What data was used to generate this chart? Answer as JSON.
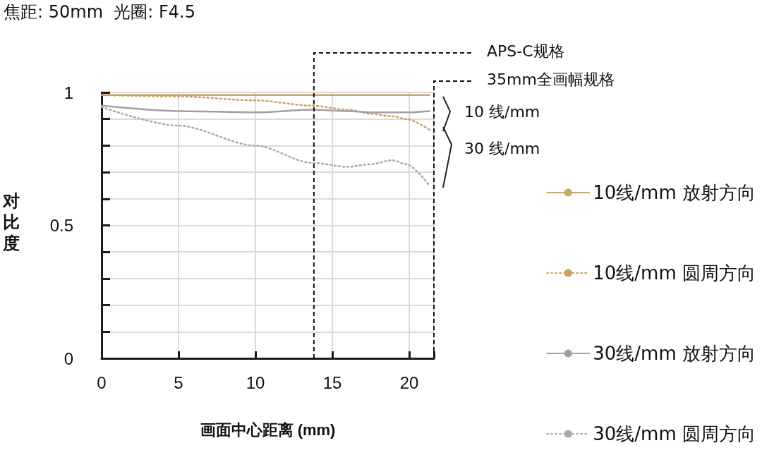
{
  "chart_data": {
    "type": "line",
    "title": "焦距: 50mm  光圈: F4.5",
    "xlabel": "画面中心距离 (mm)",
    "ylabel": "对比度",
    "x": [
      0,
      5,
      10,
      13.7,
      16,
      17.5,
      18.9,
      19.8,
      21.3
    ],
    "series": [
      {
        "name": "10线/mm 放射方向",
        "color": "#c9a46c",
        "line_style": "solid",
        "values": [
          0.99,
          0.99,
          0.99,
          0.99,
          0.99,
          0.99,
          0.99,
          0.99,
          0.99
        ]
      },
      {
        "name": "10线/mm 圆周方向",
        "color": "#c9a060",
        "line_style": "dotted",
        "values": [
          0.99,
          0.985,
          0.97,
          0.95,
          0.935,
          0.92,
          0.91,
          0.9,
          0.86
        ]
      },
      {
        "name": "30线/mm 放射方向",
        "color": "#a0a0a0",
        "line_style": "solid",
        "values": [
          0.95,
          0.93,
          0.925,
          0.935,
          0.93,
          0.925,
          0.925,
          0.925,
          0.93
        ]
      },
      {
        "name": "30线/mm 圆周方向",
        "color": "#a8a8a8",
        "line_style": "dotted",
        "values": [
          0.945,
          0.875,
          0.8,
          0.735,
          0.72,
          0.73,
          0.745,
          0.73,
          0.65
        ]
      }
    ],
    "xlim": [
      0,
      21.6
    ],
    "xticks": [
      0,
      5,
      10,
      15,
      20
    ],
    "ylim": [
      0,
      1
    ],
    "yticks": [
      0,
      {
        "value": 0.1,
        "label": null
      },
      {
        "value": 0.2,
        "label": null
      },
      {
        "value": 0.3,
        "label": null
      },
      {
        "value": 0.4,
        "label": null
      },
      {
        "value": 0.5,
        "label": "0.5"
      },
      {
        "value": 0.6,
        "label": null
      },
      {
        "value": 0.7,
        "label": null
      },
      {
        "value": 0.8,
        "label": null
      },
      {
        "value": 0.9,
        "label": null
      },
      1
    ],
    "ref_lines": [
      {
        "axis": "x",
        "value": 13.8,
        "label": "APS-C规格",
        "color": "#111111",
        "line_style": "dashed"
      },
      {
        "axis": "x",
        "value": 21.6,
        "label": "35mm全画幅规格",
        "color": "#111111",
        "line_style": "dashed"
      }
    ],
    "annotations": [
      "10 线/mm",
      "30 线/mm"
    ],
    "grid": true,
    "legend": "right",
    "marker": "none"
  }
}
